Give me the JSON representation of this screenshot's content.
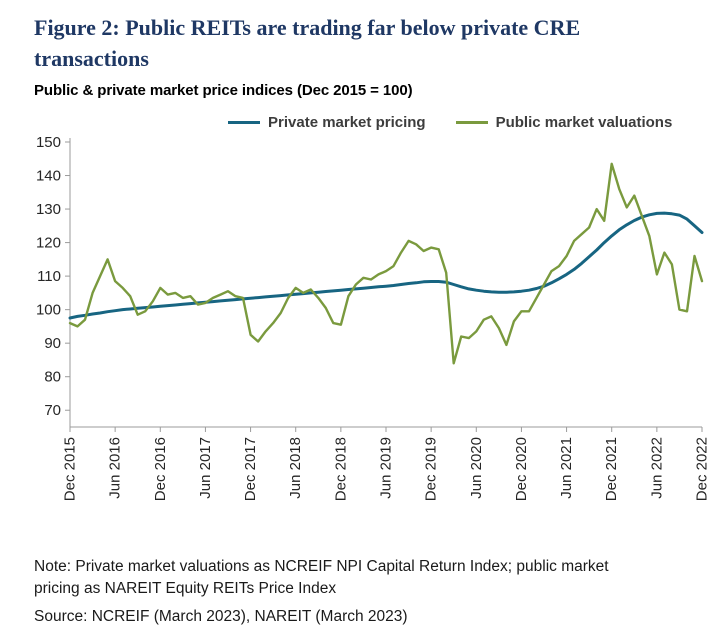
{
  "figure": {
    "title": "Figure 2: Public REITs are trading far below private CRE transactions",
    "subtitle": "Public & private market price indices (Dec 2015 = 100)",
    "note": "Note: Private market valuations as NCREIF NPI Capital Return Index; public market pricing as NAREIT Equity REITs Price Index",
    "source": "Source: NCREIF (March 2023), NAREIT (March 2023)"
  },
  "colors": {
    "title": "#1f3864",
    "axis": "#9b9b9b",
    "axis_label": "#262626",
    "private_line": "#176582",
    "public_line": "#7a9a3e"
  },
  "chart_data": {
    "type": "line",
    "title": "Public & private market price indices (Dec 2015 = 100)",
    "ylim": [
      65,
      150
    ],
    "yticks": [
      70,
      80,
      90,
      100,
      110,
      120,
      130,
      140,
      150
    ],
    "x_tick_step": 6,
    "x_tick_labels": [
      "Dec 2015",
      "Jun 2016",
      "Dec 2016",
      "Jun 2017",
      "Dec 2017",
      "Jun 2018",
      "Dec 2018",
      "Jun 2019",
      "Dec 2019",
      "Jun 2020",
      "Dec 2020",
      "Jun 2021",
      "Dec 2021",
      "Jun 2022",
      "Dec 2022"
    ],
    "x_frequency": "monthly",
    "legend_position": "top",
    "grid": false,
    "series": [
      {
        "name": "Private market pricing",
        "color": "#176582",
        "width": 3,
        "values": [
          97.5,
          98,
          98.3,
          98.7,
          99,
          99.4,
          99.7,
          100,
          100.2,
          100.4,
          100.6,
          100.8,
          101,
          101.2,
          101.4,
          101.6,
          101.8,
          102,
          102.2,
          102.4,
          102.6,
          102.8,
          103,
          103.2,
          103.4,
          103.6,
          103.8,
          104,
          104.2,
          104.4,
          104.6,
          104.8,
          105,
          105.2,
          105.4,
          105.6,
          105.8,
          106,
          106.2,
          106.4,
          106.6,
          106.8,
          107,
          107.2,
          107.5,
          107.8,
          108,
          108.3,
          108.4,
          108.4,
          108.2,
          107.5,
          106.8,
          106.2,
          105.8,
          105.5,
          105.3,
          105.2,
          105.2,
          105.3,
          105.5,
          105.8,
          106.3,
          107,
          108,
          109.2,
          110.5,
          112,
          113.8,
          115.8,
          117.8,
          120,
          122,
          123.8,
          125.3,
          126.6,
          127.6,
          128.3,
          128.7,
          128.8,
          128.6,
          128.2,
          127,
          125,
          123
        ]
      },
      {
        "name": "Public market valuations",
        "color": "#7a9a3e",
        "width": 2.4,
        "values": [
          96,
          95,
          97,
          105,
          110,
          115,
          108.5,
          106.5,
          104,
          98.5,
          99.5,
          102.5,
          106.5,
          104.5,
          105,
          103.5,
          104,
          101.5,
          102,
          103.5,
          104.5,
          105.5,
          104,
          103.5,
          92.5,
          90.5,
          93.5,
          96,
          99,
          103.5,
          106.5,
          105,
          106,
          103.5,
          100.5,
          96,
          95.5,
          104,
          107.5,
          109.5,
          109,
          110.5,
          111.5,
          113,
          117,
          120.5,
          119.5,
          117.5,
          118.5,
          118,
          111,
          84,
          92,
          91.5,
          93.5,
          97,
          98,
          94.5,
          89.5,
          96.5,
          99.5,
          99.5,
          103.5,
          107.5,
          111.5,
          113,
          116,
          120.5,
          122.5,
          124.5,
          130,
          126.5,
          143.5,
          136,
          130.5,
          134,
          128,
          122,
          110.5,
          117,
          113.5,
          100,
          99.5,
          116,
          108.5
        ]
      }
    ]
  }
}
